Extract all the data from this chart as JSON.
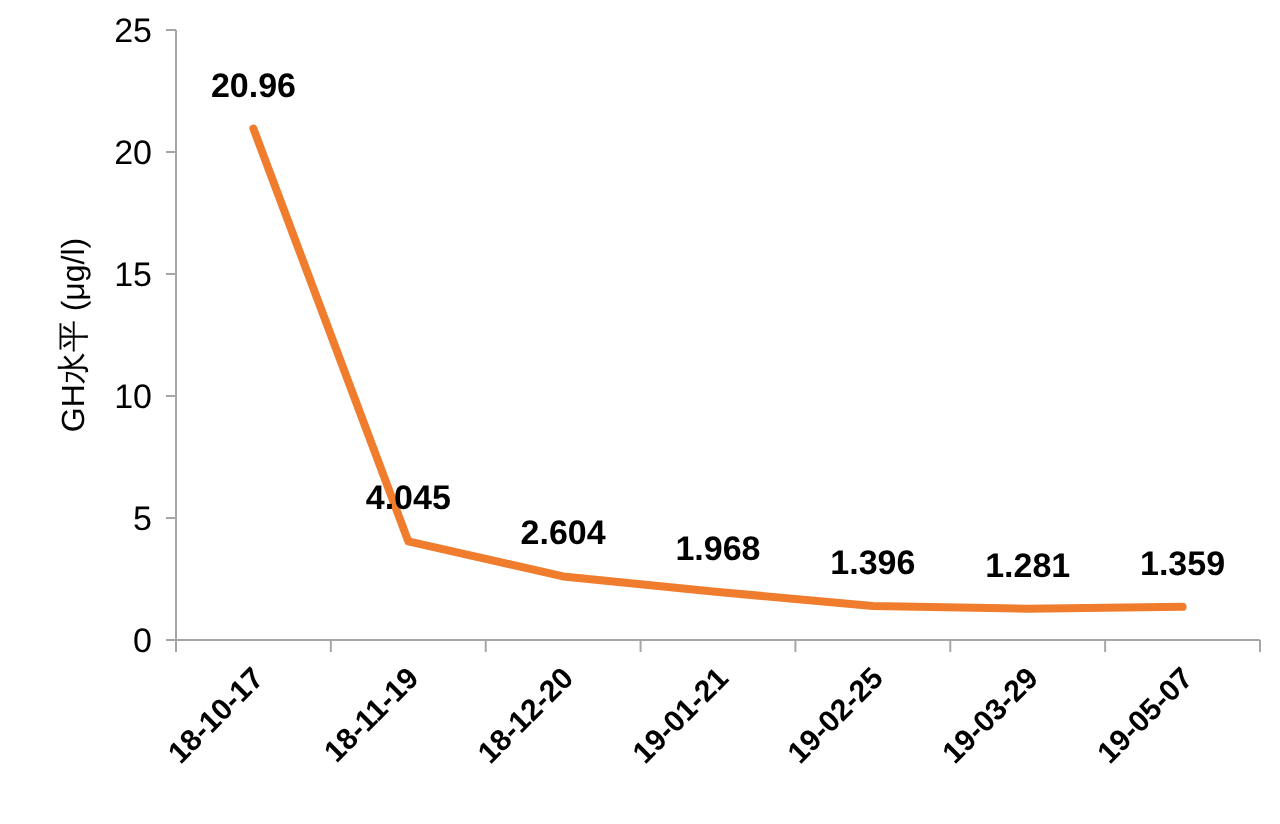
{
  "chart_data": {
    "type": "line",
    "ylabel": "GH水平 (μg/l)",
    "categories": [
      "18-10-17",
      "18-11-19",
      "18-12-20",
      "19-01-21",
      "19-02-25",
      "19-03-29",
      "19-05-07"
    ],
    "series": [
      {
        "color": "#f07d2e",
        "values": [
          20.96,
          4.045,
          2.604,
          1.968,
          1.396,
          1.281,
          1.359
        ]
      }
    ],
    "ylim": [
      0,
      25
    ],
    "yticks": [
      0,
      5,
      10,
      15,
      20,
      25
    ],
    "data_labels": true
  }
}
